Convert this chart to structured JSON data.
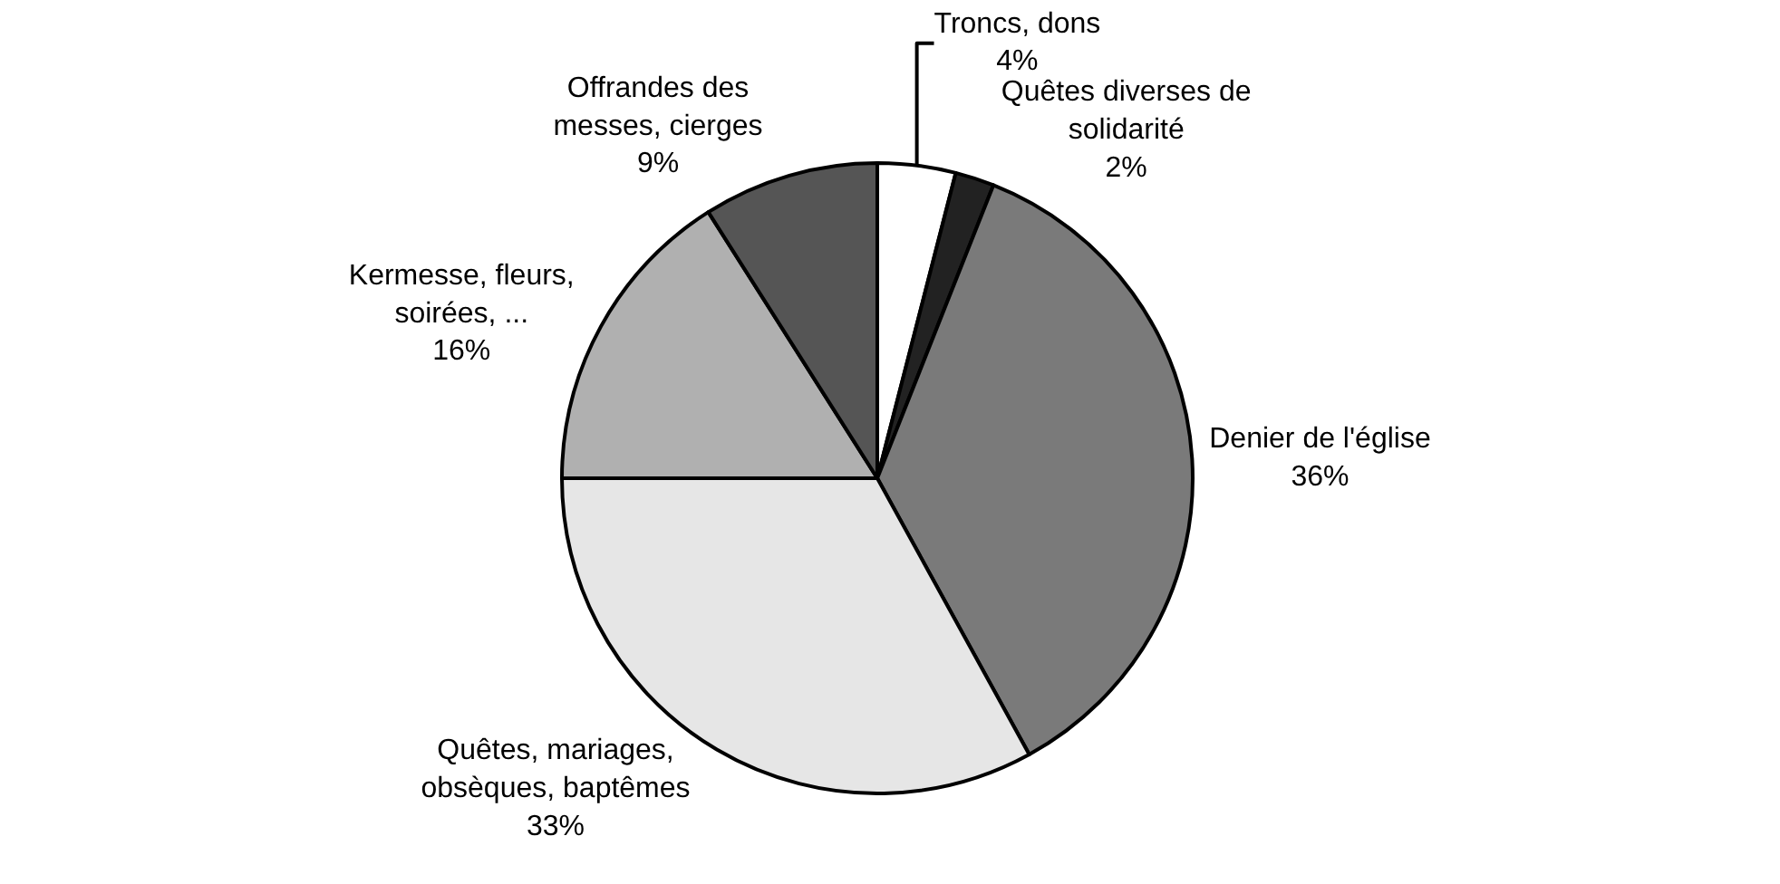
{
  "chart_data": {
    "type": "pie",
    "categories": [
      "Troncs, dons",
      "Quêtes diverses de solidarité",
      "Denier de l'église",
      "Quêtes, mariages, obsèques, baptêmes",
      "Kermesse, fleurs, soirées, ...",
      "Offrandes des messes, cierges"
    ],
    "values": [
      4,
      2,
      36,
      33,
      16,
      9
    ],
    "value_labels": [
      "4%",
      "2%",
      "36%",
      "33%",
      "16%",
      "9%"
    ],
    "colors": [
      "#ffffff",
      "#222222",
      "#7a7a7a",
      "#e6e6e6",
      "#b0b0b0",
      "#555555"
    ],
    "legend": false
  }
}
